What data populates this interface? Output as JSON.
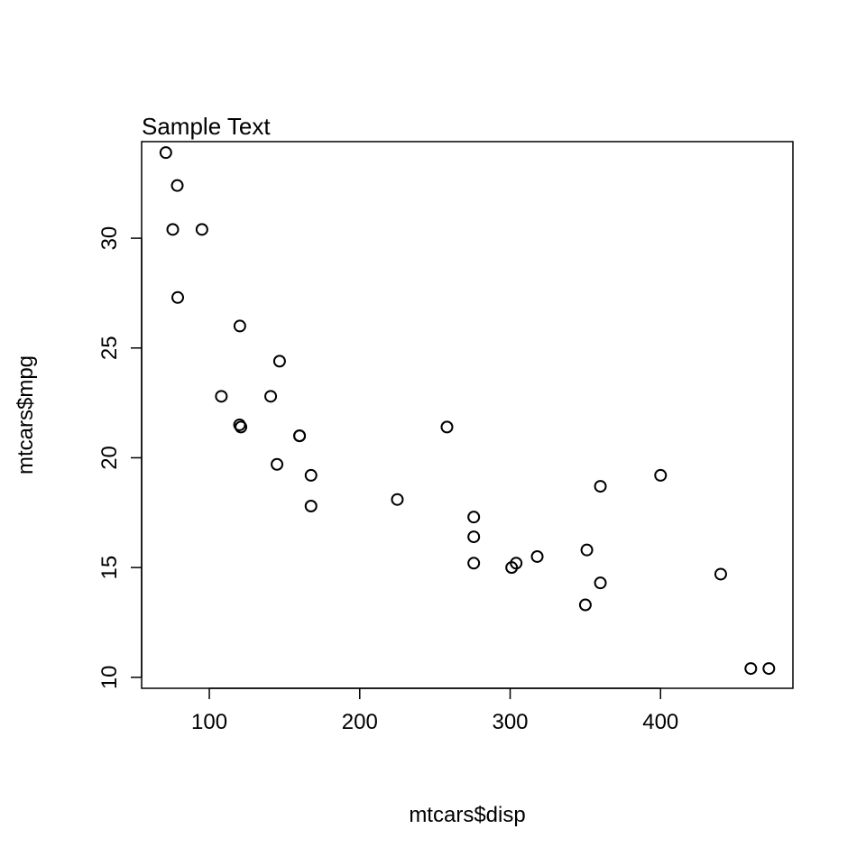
{
  "chart_data": {
    "type": "scatter",
    "title": "Sample Text",
    "xlabel": "mtcars$disp",
    "ylabel": "mtcars$mpg",
    "xlim": [
      55,
      488
    ],
    "ylim": [
      9.5,
      34.4
    ],
    "x_ticks": [
      100,
      200,
      300,
      400
    ],
    "y_ticks": [
      10,
      15,
      20,
      25,
      30
    ],
    "x_tick_labels": [
      "100",
      "200",
      "300",
      "400"
    ],
    "y_tick_labels": [
      "10",
      "15",
      "20",
      "25",
      "30"
    ],
    "grid": false,
    "legend": "none",
    "marker": "open-circle",
    "color": "#000000",
    "x": [
      160,
      160,
      108,
      258,
      360,
      225,
      360,
      146.7,
      140.8,
      167.6,
      167.6,
      275.8,
      275.8,
      275.8,
      472,
      460,
      440,
      78.7,
      75.7,
      71.1,
      120.1,
      318,
      304,
      350,
      400,
      79,
      120.3,
      95.1,
      351,
      145,
      301,
      121
    ],
    "y": [
      21,
      21,
      22.8,
      21.4,
      18.7,
      18.1,
      14.3,
      24.4,
      22.8,
      19.2,
      17.8,
      16.4,
      17.3,
      15.2,
      10.4,
      10.4,
      14.7,
      32.4,
      30.4,
      33.9,
      21.5,
      15.5,
      15.2,
      13.3,
      19.2,
      27.3,
      26,
      30.4,
      15.8,
      19.7,
      15,
      21.4
    ]
  }
}
